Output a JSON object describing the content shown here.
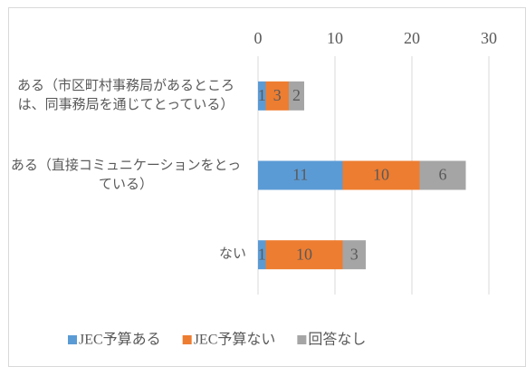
{
  "chart_data": {
    "type": "bar",
    "orientation": "horizontal",
    "stacked": true,
    "categories": [
      "ある（市区町村事務局があるところは、同事務局を通じてとっている）",
      "ある（直接コミュニケーションをとっている）",
      "ない"
    ],
    "series": [
      {
        "name": "JEC予算ある",
        "color": "#5b9bd5",
        "values": [
          1,
          11,
          1
        ]
      },
      {
        "name": "JEC予算ない",
        "color": "#ed7d31",
        "values": [
          3,
          10,
          10
        ]
      },
      {
        "name": "回答なし",
        "color": "#a5a5a5",
        "values": [
          2,
          6,
          3
        ]
      }
    ],
    "xlim": [
      0,
      30
    ],
    "xticks": [
      0,
      10,
      20,
      30
    ],
    "grid": true,
    "legend": "bottom"
  }
}
